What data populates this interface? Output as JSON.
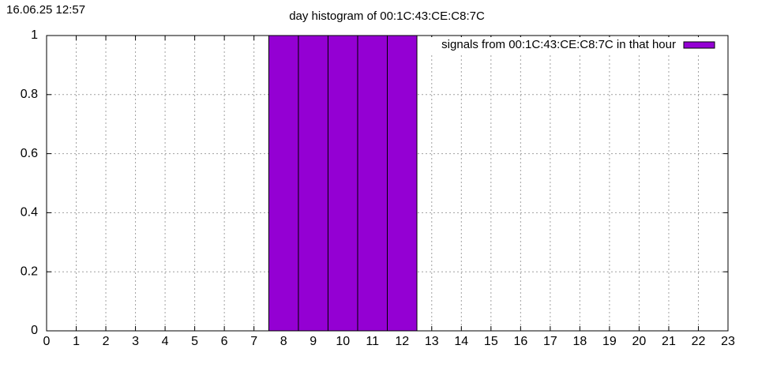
{
  "chart_data": {
    "type": "bar",
    "title": "day histogram of 00:1C:43:CE:C8:7C",
    "annotation": "16.06.25 12:57",
    "x": [
      0,
      1,
      2,
      3,
      4,
      5,
      6,
      7,
      8,
      9,
      10,
      11,
      12,
      13,
      14,
      15,
      16,
      17,
      18,
      19,
      20,
      21,
      22,
      23
    ],
    "series": [
      {
        "name": "signals from 00:1C:43:CE:C8:7C in that hour",
        "color": "#9400d3",
        "values": [
          0,
          0,
          0,
          0,
          0,
          0,
          0,
          0,
          1,
          1,
          1,
          1,
          1,
          0,
          0,
          0,
          0,
          0,
          0,
          0,
          0,
          0,
          0,
          0
        ]
      }
    ],
    "xlim": [
      0,
      23
    ],
    "xticks": [
      0,
      1,
      2,
      3,
      4,
      5,
      6,
      7,
      8,
      9,
      10,
      11,
      12,
      13,
      14,
      15,
      16,
      17,
      18,
      19,
      20,
      21,
      22,
      23
    ],
    "ylim": [
      0,
      1
    ],
    "yticks": [
      0,
      0.2,
      0.4,
      0.6,
      0.8,
      1
    ],
    "bar_width": 1,
    "grid": true,
    "legend": "top-right"
  }
}
